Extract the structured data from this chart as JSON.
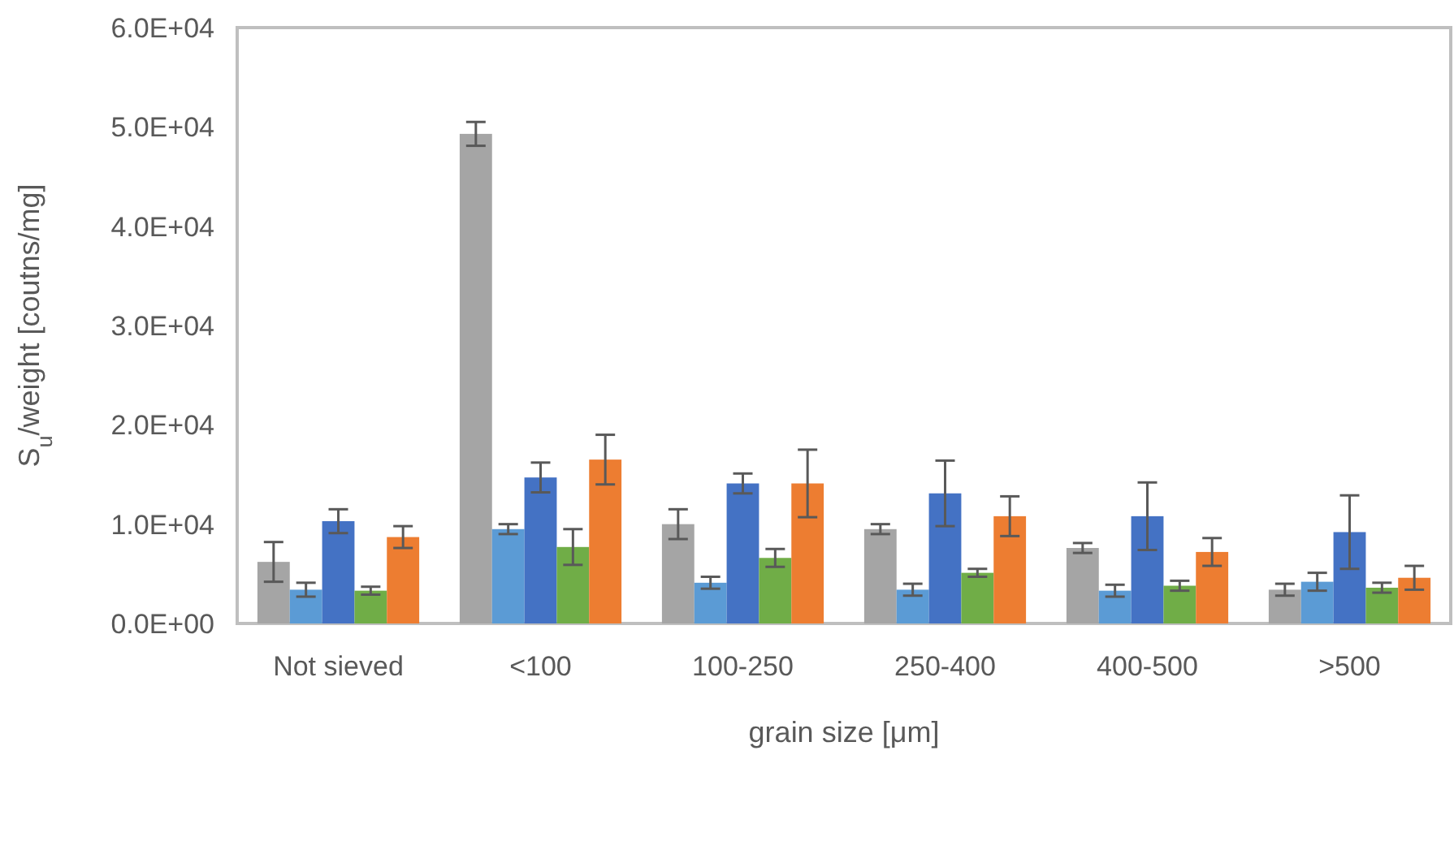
{
  "chart_data": {
    "type": "bar",
    "xlabel": "grain size [μm]",
    "ylabel": "S$_{u}$/weight [coutns/mg]",
    "categories": [
      "Not sieved",
      "<100",
      "100-250",
      "250-400",
      "400-500",
      ">500"
    ],
    "series": [
      {
        "color": "#a5a5a5",
        "values": [
          6200,
          49300,
          10000,
          9500,
          7600,
          3400
        ],
        "errors": [
          2000,
          1200,
          1500,
          500,
          500,
          600
        ]
      },
      {
        "color": "#5b9bd5",
        "values": [
          3400,
          9500,
          4100,
          3400,
          3300,
          4200
        ],
        "errors": [
          700,
          500,
          600,
          600,
          600,
          900
        ]
      },
      {
        "color": "#4472c4",
        "values": [
          10300,
          14700,
          14100,
          13100,
          10800,
          9200
        ],
        "errors": [
          1200,
          1500,
          1000,
          3300,
          3400,
          3700
        ]
      },
      {
        "color": "#70ad47",
        "values": [
          3300,
          7700,
          6600,
          5100,
          3800,
          3600
        ],
        "errors": [
          400,
          1800,
          900,
          400,
          500,
          500
        ]
      },
      {
        "color": "#ed7d31",
        "values": [
          8700,
          16500,
          14100,
          10800,
          7200,
          4600
        ],
        "errors": [
          1100,
          2500,
          3400,
          2000,
          1400,
          1200
        ]
      }
    ],
    "ylim": [
      0,
      60000
    ],
    "yticks": [
      {
        "value": 0,
        "label": "0.0E+00"
      },
      {
        "value": 10000,
        "label": "1.0E+04"
      },
      {
        "value": 20000,
        "label": "2.0E+04"
      },
      {
        "value": 30000,
        "label": "3.0E+04"
      },
      {
        "value": 40000,
        "label": "4.0E+04"
      },
      {
        "value": 50000,
        "label": "5.0E+04"
      },
      {
        "value": 60000,
        "label": "6.0E+04"
      }
    ],
    "grid": false
  }
}
